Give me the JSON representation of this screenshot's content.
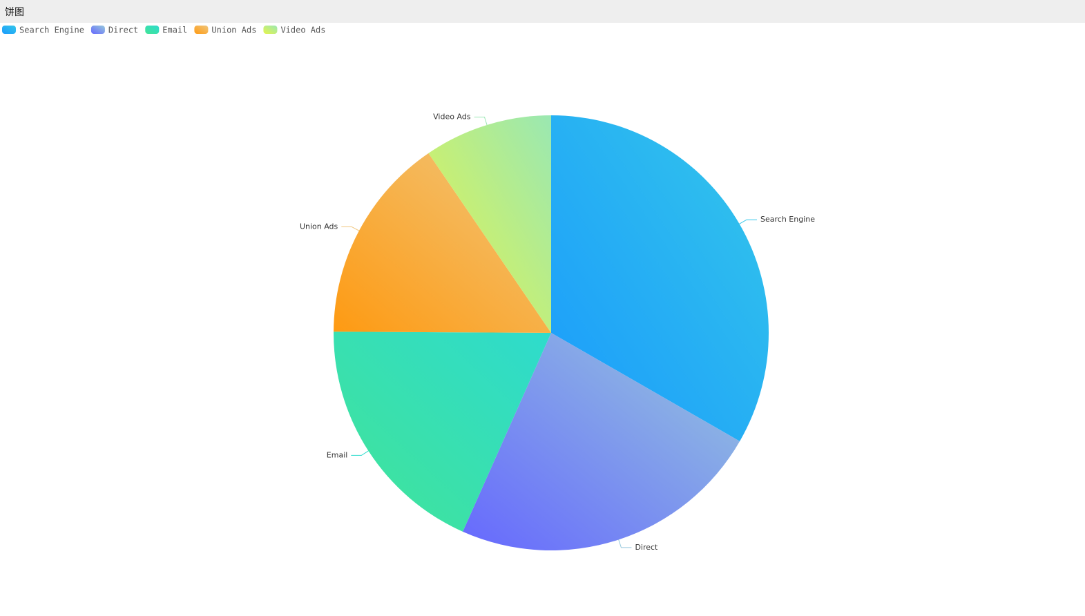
{
  "window_title": "饼图",
  "chart_data": {
    "type": "pie",
    "categories": [
      "Search Engine",
      "Direct",
      "Email",
      "Union Ads",
      "Video Ads"
    ],
    "values": [
      1048,
      735,
      580,
      484,
      300
    ],
    "colors": [
      [
        "#1a9afc",
        "#34c7ea"
      ],
      [
        "#6668fe",
        "#96c8dc"
      ],
      [
        "#42e496",
        "#2edbcd"
      ],
      [
        "#fe9a12",
        "#f0c67c"
      ],
      [
        "#e6f44a",
        "#9ae8b2"
      ]
    ]
  }
}
